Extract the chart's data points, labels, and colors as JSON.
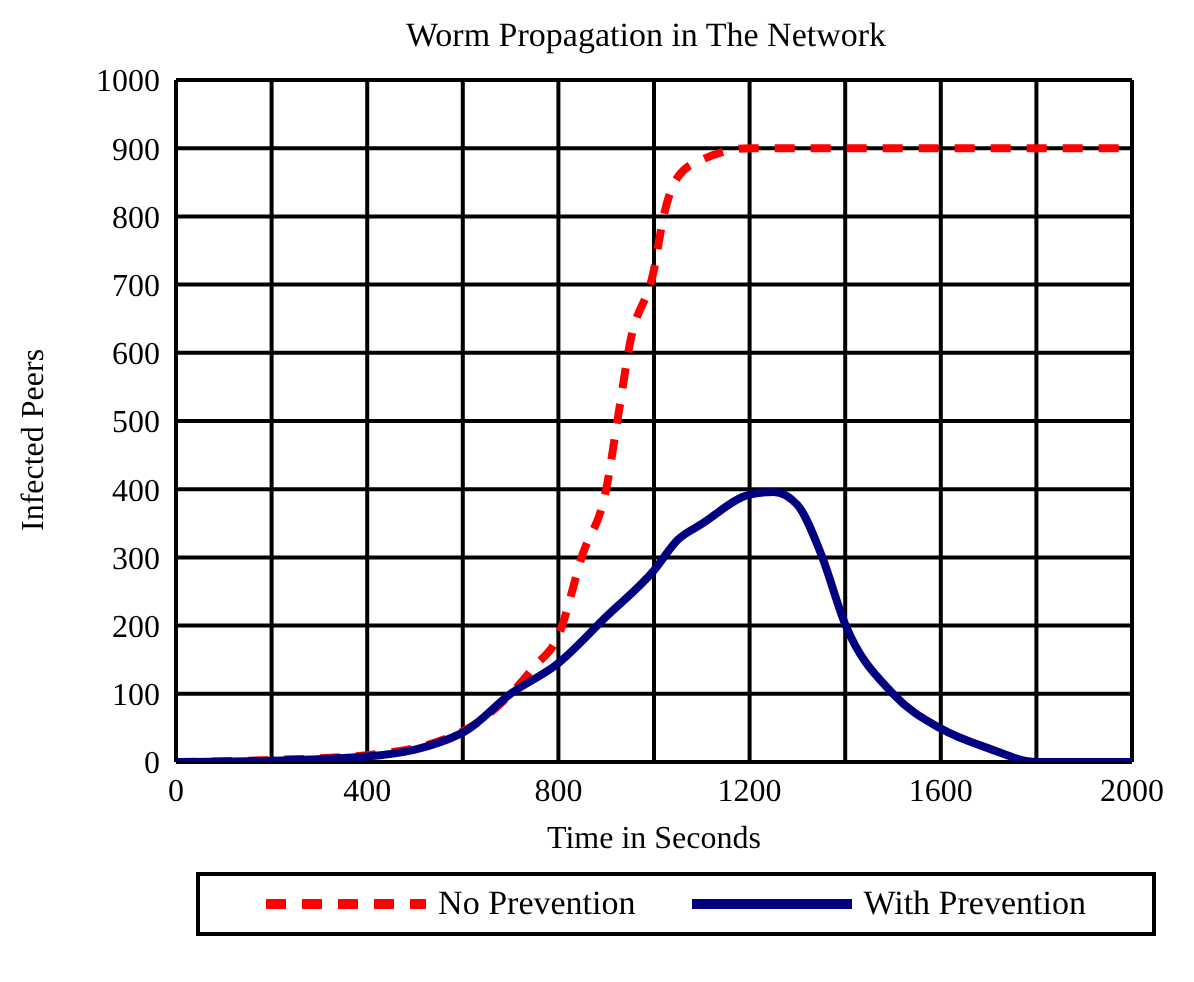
{
  "chart_data": {
    "type": "line",
    "title": "Worm Propagation in The Network",
    "xlabel": "Time in Seconds",
    "ylabel": "Infected Peers",
    "xlim": [
      0,
      2000
    ],
    "xticks": [
      0,
      400,
      800,
      1200,
      1600,
      2000
    ],
    "ylim": [
      0,
      1000
    ],
    "yticks": [
      0,
      100,
      200,
      300,
      400,
      500,
      600,
      700,
      800,
      900,
      1000
    ],
    "grid": true,
    "legend": "bottom",
    "marker": "none",
    "series": [
      {
        "name": "No Prevention",
        "color": "#ff0000",
        "line_style": "dashed",
        "x": [
          0,
          200,
          400,
          600,
          700,
          750,
          800,
          850,
          900,
          925,
          950,
          1000,
          1020,
          1050,
          1100,
          1200,
          1400,
          1600,
          1800,
          2000
        ],
        "values": [
          0,
          3,
          10,
          45,
          100,
          140,
          185,
          303,
          400,
          507,
          615,
          722,
          800,
          858,
          883,
          900,
          900,
          900,
          900,
          900
        ]
      },
      {
        "name": "With Prevention",
        "color": "#000080",
        "line_style": "solid",
        "x": [
          0,
          200,
          400,
          600,
          700,
          800,
          900,
          1000,
          1050,
          1100,
          1200,
          1250,
          1300,
          1350,
          1400,
          1500,
          1600,
          1700,
          1800,
          1900,
          2000
        ],
        "values": [
          0,
          2,
          8,
          43,
          100,
          145,
          213,
          281,
          326,
          349,
          392,
          396,
          377,
          304,
          202,
          100,
          49,
          20,
          0,
          0,
          0
        ]
      }
    ]
  }
}
